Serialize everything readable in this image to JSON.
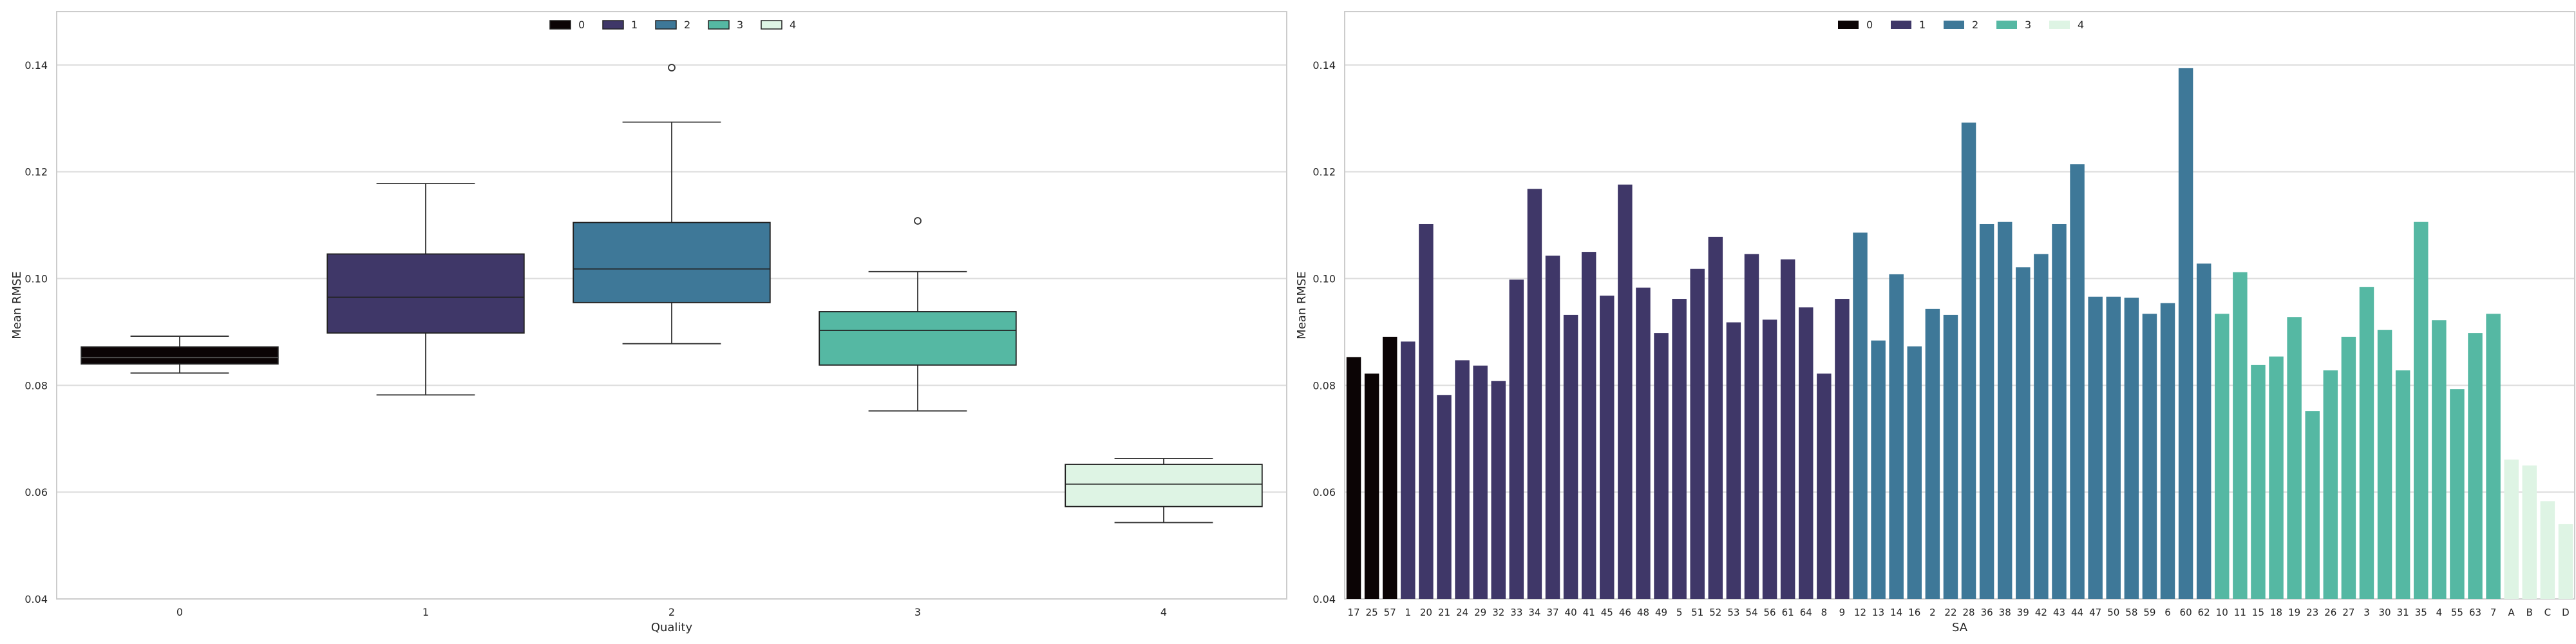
{
  "palette": [
    "#0b0405",
    "#3f3768",
    "#3e7898",
    "#55b8a3",
    "#def4e4"
  ],
  "chart_data": [
    {
      "type": "box",
      "xlabel": "Quality",
      "ylabel": "Mean RMSE",
      "categories": [
        "0",
        "1",
        "2",
        "3",
        "4"
      ],
      "ylim": [
        0.04,
        0.15
      ],
      "yticks": [
        "0.04",
        "0.06",
        "0.08",
        "0.10",
        "0.12",
        "0.14"
      ],
      "grid": true,
      "legend": {
        "placement": "top-center",
        "entries": [
          "0",
          "1",
          "2",
          "3",
          "4"
        ]
      },
      "boxes": [
        {
          "category": "0",
          "whisker_low": 0.0823,
          "q1": 0.084,
          "median": 0.0852,
          "q3": 0.0872,
          "whisker_high": 0.0892,
          "outliers": []
        },
        {
          "category": "1",
          "whisker_low": 0.0782,
          "q1": 0.0898,
          "median": 0.0965,
          "q3": 0.1046,
          "whisker_high": 0.1178,
          "outliers": []
        },
        {
          "category": "2",
          "whisker_low": 0.0878,
          "q1": 0.0955,
          "median": 0.1018,
          "q3": 0.1105,
          "whisker_high": 0.1293,
          "outliers": [
            0.1395
          ]
        },
        {
          "category": "3",
          "whisker_low": 0.0752,
          "q1": 0.0838,
          "median": 0.0903,
          "q3": 0.0938,
          "whisker_high": 0.1013,
          "outliers": [
            0.1108
          ]
        },
        {
          "category": "4",
          "whisker_low": 0.0543,
          "q1": 0.0573,
          "median": 0.0615,
          "q3": 0.0652,
          "whisker_high": 0.0663,
          "outliers": []
        }
      ]
    },
    {
      "type": "bar",
      "xlabel": "SA",
      "ylabel": "Mean RMSE",
      "ylim": [
        0.04,
        0.15
      ],
      "yticks": [
        "0.04",
        "0.06",
        "0.08",
        "0.10",
        "0.12",
        "0.14"
      ],
      "grid": true,
      "legend": {
        "placement": "top-center",
        "entries": [
          "0",
          "1",
          "2",
          "3",
          "4"
        ]
      },
      "categories": [
        "17",
        "25",
        "57",
        "1",
        "20",
        "21",
        "24",
        "29",
        "32",
        "33",
        "34",
        "37",
        "40",
        "41",
        "45",
        "46",
        "48",
        "49",
        "5",
        "51",
        "52",
        "53",
        "54",
        "56",
        "61",
        "64",
        "8",
        "9",
        "12",
        "13",
        "14",
        "16",
        "2",
        "22",
        "28",
        "36",
        "38",
        "39",
        "42",
        "43",
        "44",
        "47",
        "50",
        "58",
        "59",
        "6",
        "60",
        "62",
        "10",
        "11",
        "15",
        "18",
        "19",
        "23",
        "26",
        "27",
        "3",
        "30",
        "31",
        "35",
        "4",
        "55",
        "63",
        "7",
        "A",
        "B",
        "C",
        "D"
      ],
      "values": [
        0.0853,
        0.0822,
        0.0891,
        0.0882,
        0.1102,
        0.0782,
        0.0847,
        0.0837,
        0.0808,
        0.0998,
        0.1168,
        0.1043,
        0.0932,
        0.105,
        0.0968,
        0.1176,
        0.0983,
        0.0898,
        0.0962,
        0.1018,
        0.1078,
        0.0918,
        0.1046,
        0.0923,
        0.1036,
        0.0946,
        0.0822,
        0.0962,
        0.1086,
        0.0884,
        0.1008,
        0.0873,
        0.0943,
        0.0932,
        0.1292,
        0.1102,
        0.1106,
        0.1021,
        0.1046,
        0.1102,
        0.1214,
        0.0966,
        0.0966,
        0.0964,
        0.0934,
        0.0954,
        0.1394,
        0.1028,
        0.0934,
        0.1012,
        0.0838,
        0.0854,
        0.0928,
        0.0752,
        0.0828,
        0.0891,
        0.0984,
        0.0904,
        0.0828,
        0.1106,
        0.0922,
        0.0793,
        0.0898,
        0.0934,
        0.0661,
        0.065,
        0.0583,
        0.054
      ],
      "quality": [
        0,
        0,
        0,
        1,
        1,
        1,
        1,
        1,
        1,
        1,
        1,
        1,
        1,
        1,
        1,
        1,
        1,
        1,
        1,
        1,
        1,
        1,
        1,
        1,
        1,
        1,
        1,
        1,
        2,
        2,
        2,
        2,
        2,
        2,
        2,
        2,
        2,
        2,
        2,
        2,
        2,
        2,
        2,
        2,
        2,
        2,
        2,
        2,
        3,
        3,
        3,
        3,
        3,
        3,
        3,
        3,
        3,
        3,
        3,
        3,
        3,
        3,
        3,
        3,
        4,
        4,
        4,
        4
      ]
    }
  ]
}
